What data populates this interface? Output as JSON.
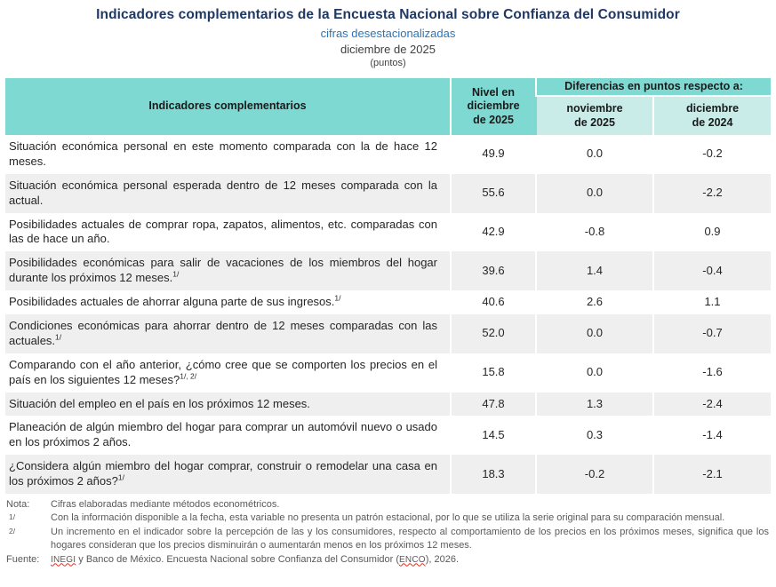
{
  "header": {
    "title": "Indicadores complementarios de la Encuesta Nacional sobre Confianza del Consumidor",
    "subtitle": "cifras desestacionalizadas",
    "period": "diciembre de 2025",
    "units": "(puntos)"
  },
  "colors": {
    "title_navy": "#1F3864",
    "subtitle_blue": "#2E74B5",
    "header_teal": "#7DD9D2",
    "subheader_teal": "#C9ECE9",
    "row_alt_gray": "#EFEFEF",
    "notes_gray": "#595959",
    "spellcheck_red": "#e8291b"
  },
  "table": {
    "col_headers": {
      "indicators": "Indicadores complementarios",
      "level": "Nivel en\ndiciembre\nde 2025",
      "diff_group": "Diferencias en puntos respecto a:",
      "diff_prev": "noviembre\nde 2025",
      "diff_year": "diciembre\nde 2024"
    },
    "rows": [
      {
        "indicator": "Situación económica personal en este momento comparada con la de hace 12 meses.",
        "sup": "",
        "level": "49.9",
        "diff_prev": "0.0",
        "diff_year": "-0.2"
      },
      {
        "indicator": "Situación económica personal esperada dentro de 12 meses comparada con la actual.",
        "sup": "",
        "level": "55.6",
        "diff_prev": "0.0",
        "diff_year": "-2.2"
      },
      {
        "indicator": "Posibilidades actuales de comprar ropa, zapatos, alimentos, etc. comparadas con las de hace un año.",
        "sup": "",
        "level": "42.9",
        "diff_prev": "-0.8",
        "diff_year": "0.9"
      },
      {
        "indicator": "Posibilidades económicas para salir de vacaciones de los miembros del hogar durante los próximos 12 meses.",
        "sup": "1/",
        "level": "39.6",
        "diff_prev": "1.4",
        "diff_year": "-0.4"
      },
      {
        "indicator": "Posibilidades actuales de ahorrar alguna parte de sus ingresos.",
        "sup": "1/",
        "level": "40.6",
        "diff_prev": "2.6",
        "diff_year": "1.1"
      },
      {
        "indicator": "Condiciones económicas para ahorrar dentro de 12 meses comparadas con las actuales.",
        "sup": "1/",
        "level": "52.0",
        "diff_prev": "0.0",
        "diff_year": "-0.7"
      },
      {
        "indicator": "Comparando con el año anterior, ¿cómo cree que se comporten los precios en el país en los siguientes 12 meses?",
        "sup": "1/, 2/",
        "level": "15.8",
        "diff_prev": "0.0",
        "diff_year": "-1.6"
      },
      {
        "indicator": "Situación del empleo en el país en los próximos 12 meses.",
        "sup": "",
        "level": "47.8",
        "diff_prev": "1.3",
        "diff_year": "-2.4"
      },
      {
        "indicator": "Planeación de algún miembro del hogar para comprar un automóvil nuevo o usado en los próximos 2 años.",
        "sup": "",
        "level": "14.5",
        "diff_prev": "0.3",
        "diff_year": "-1.4"
      },
      {
        "indicator": "¿Considera algún miembro del hogar comprar, construir o remodelar una casa en los próximos 2 años?",
        "sup": "1/",
        "level": "18.3",
        "diff_prev": "-0.2",
        "diff_year": "-2.1"
      }
    ]
  },
  "notes": [
    {
      "label": "Nota:",
      "sup_label": false,
      "segments": [
        {
          "text": "Cifras elaboradas mediante métodos econométricos.",
          "wavy": false
        }
      ]
    },
    {
      "label": "1/",
      "sup_label": true,
      "segments": [
        {
          "text": "Con la información disponible a la fecha, esta variable no presenta un patrón estacional, por lo que se utiliza la serie original para su comparación mensual.",
          "wavy": false
        }
      ]
    },
    {
      "label": "2/",
      "sup_label": true,
      "segments": [
        {
          "text": "Un incremento en el indicador sobre la percepción de las y los consumidores, respecto al comportamiento de los precios en los próximos meses, significa que los hogares consideran que los precios disminuirán o aumentarán menos en los próximos 12 meses.",
          "wavy": false
        }
      ]
    },
    {
      "label": "Fuente:",
      "sup_label": false,
      "segments": [
        {
          "text": "INEGI",
          "wavy": true
        },
        {
          "text": " y Banco de México. Encuesta Nacional sobre Confianza del Consumidor (",
          "wavy": false
        },
        {
          "text": "ENCO",
          "wavy": true
        },
        {
          "text": "), 2026.",
          "wavy": false
        }
      ]
    }
  ]
}
